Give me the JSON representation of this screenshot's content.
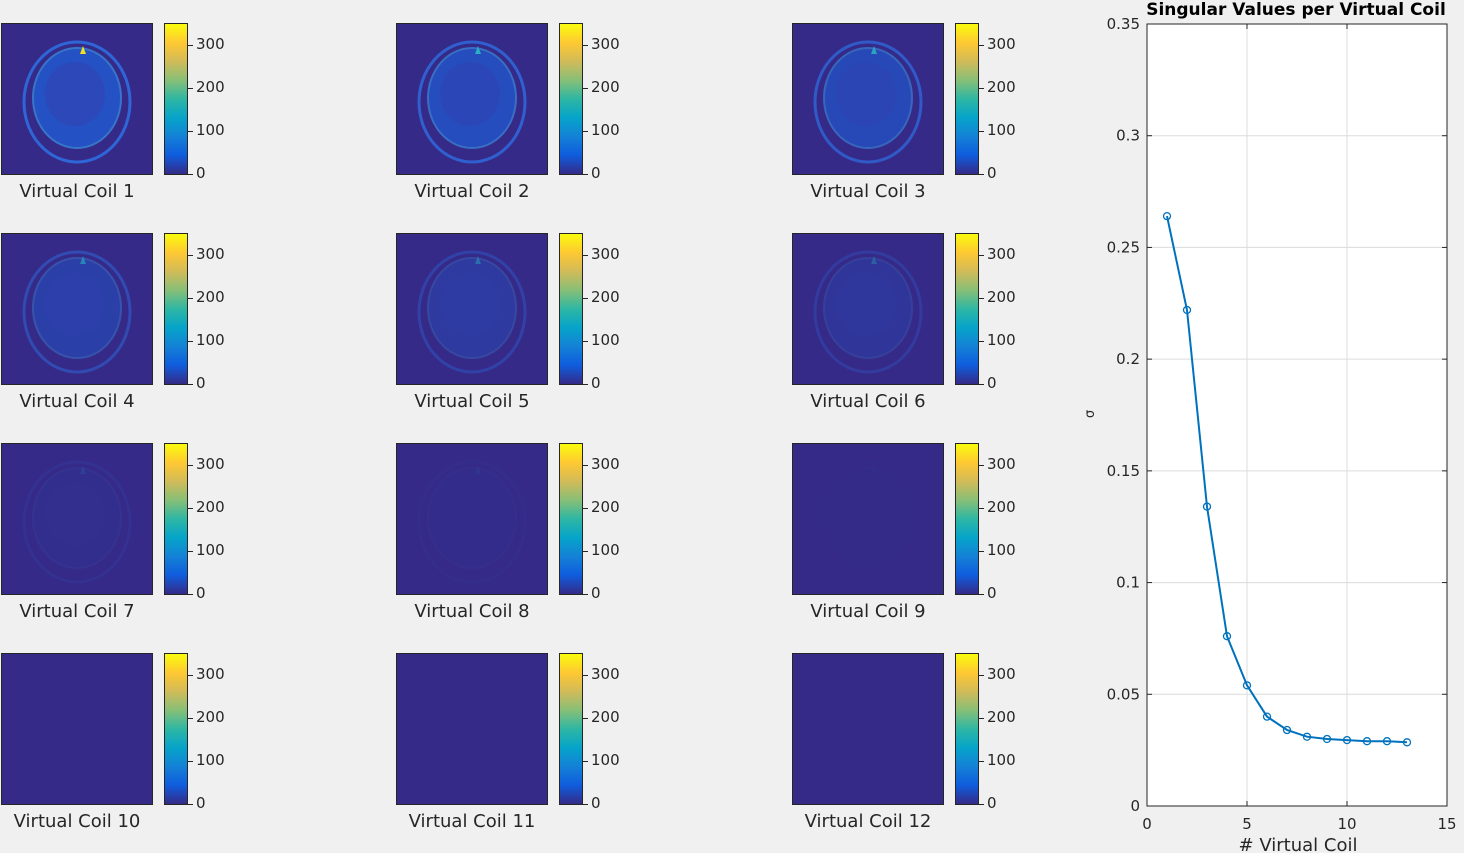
{
  "figure": {
    "panels": [
      {
        "label": "Virtual Coil 1",
        "level": 1.0
      },
      {
        "label": "Virtual Coil 2",
        "level": 0.9
      },
      {
        "label": "Virtual Coil 3",
        "level": 0.8
      },
      {
        "label": "Virtual Coil 4",
        "level": 0.55
      },
      {
        "label": "Virtual Coil 5",
        "level": 0.4
      },
      {
        "label": "Virtual Coil 6",
        "level": 0.3
      },
      {
        "label": "Virtual Coil 7",
        "level": 0.12
      },
      {
        "label": "Virtual Coil 8",
        "level": 0.06
      },
      {
        "label": "Virtual Coil 9",
        "level": 0.02
      },
      {
        "label": "Virtual Coil 10",
        "level": 0.0
      },
      {
        "label": "Virtual Coil 11",
        "level": 0.0
      },
      {
        "label": "Virtual Coil 12",
        "level": 0.0
      }
    ],
    "colorbar_ticks": [
      "0",
      "100",
      "200",
      "300"
    ],
    "colorbar_range": [
      0,
      350
    ],
    "colormap": [
      "#352a87",
      "#0f5cdd",
      "#1481d6",
      "#06a4ca",
      "#2eb7a4",
      "#87bf77",
      "#d1bb59",
      "#fec832",
      "#f9fb0e"
    ]
  },
  "chart_data": {
    "type": "line",
    "title": "Singular Values per Virtual Coil",
    "xlabel": "# Virtual Coil",
    "ylabel": "σ",
    "x": [
      1,
      2,
      3,
      4,
      5,
      6,
      7,
      8,
      9,
      10,
      11,
      12,
      13
    ],
    "y": [
      0.264,
      0.222,
      0.134,
      0.076,
      0.054,
      0.04,
      0.034,
      0.031,
      0.03,
      0.0295,
      0.029,
      0.029,
      0.0285
    ],
    "xlim": [
      0,
      15
    ],
    "ylim": [
      0,
      0.35
    ],
    "xticks": [
      0,
      5,
      10,
      15
    ],
    "xtick_labels": [
      "0",
      "5",
      "10",
      "15"
    ],
    "yticks": [
      0,
      0.05,
      0.1,
      0.15,
      0.2,
      0.25,
      0.3,
      0.35
    ],
    "ytick_labels": [
      "0",
      "0.05",
      "0.1",
      "0.15",
      "0.2",
      "0.25",
      "0.3",
      "0.35"
    ],
    "grid": true,
    "line_color": "#0072bd",
    "marker": "circle"
  }
}
